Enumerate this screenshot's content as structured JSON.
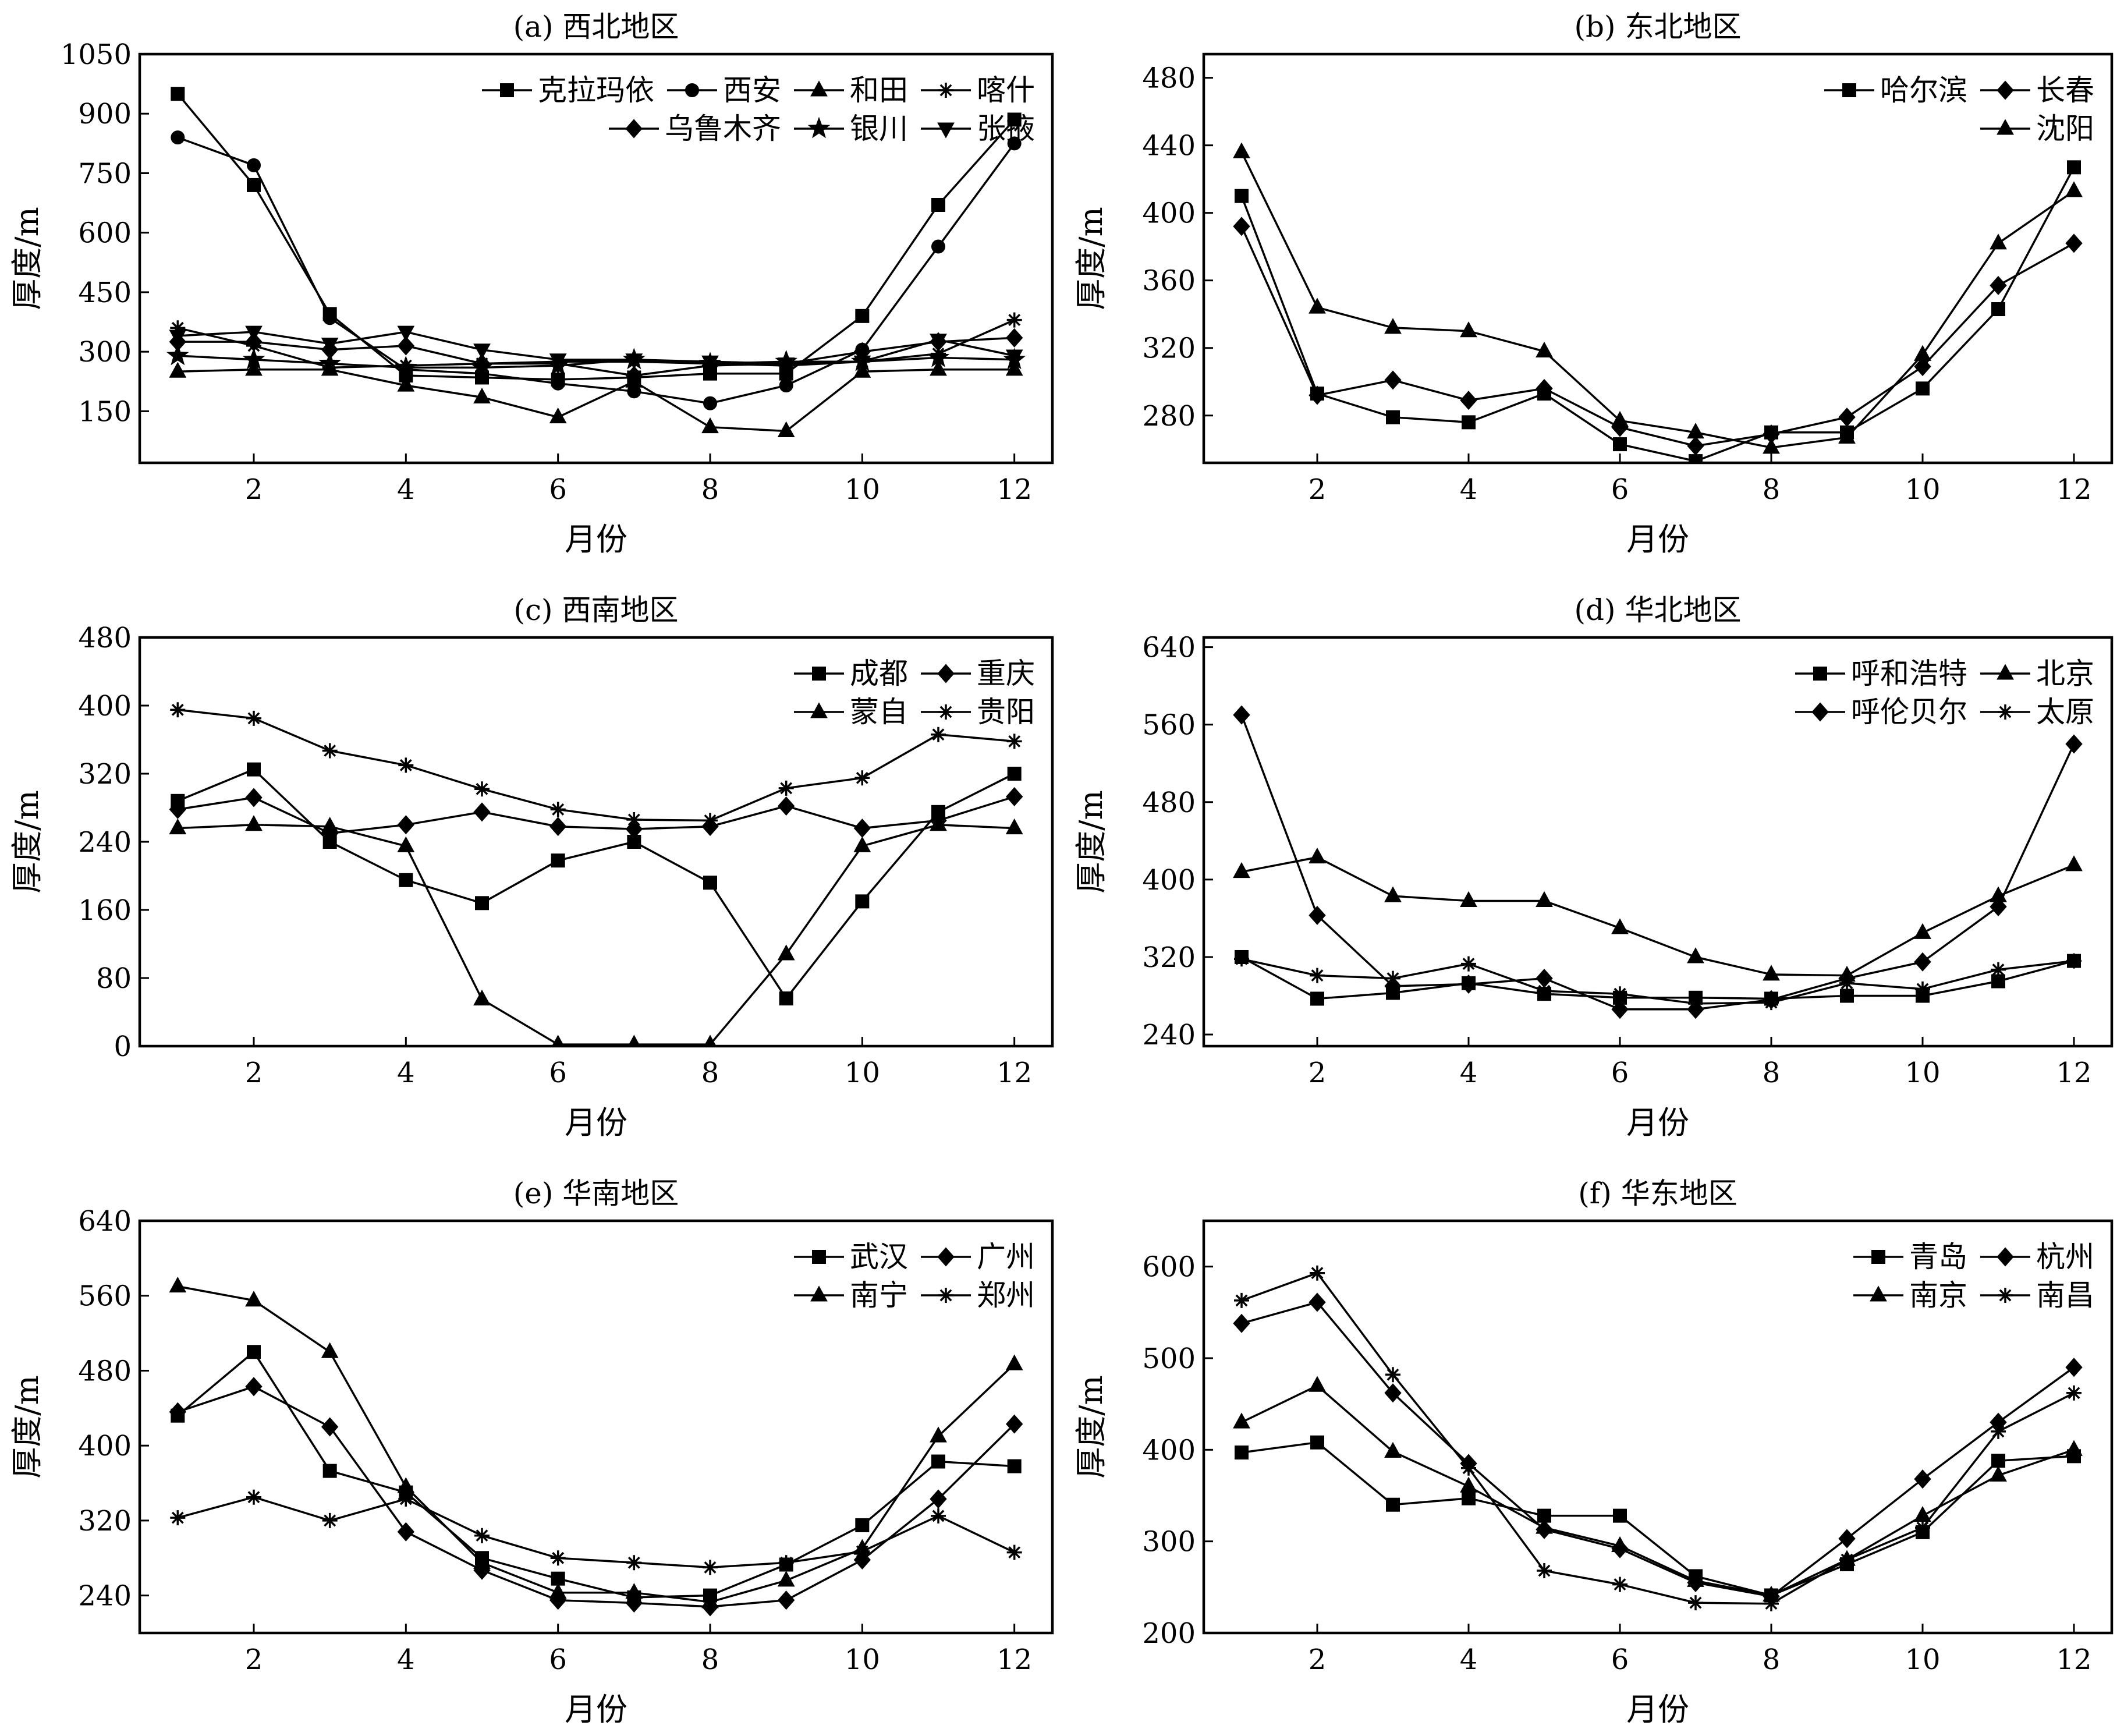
{
  "chart_data": [
    {
      "type": "line",
      "title": "(a) 西北地区",
      "xlabel": "月份",
      "ylabel": "厚度/m",
      "x": [
        1,
        2,
        3,
        4,
        5,
        6,
        7,
        8,
        9,
        10,
        11,
        12
      ],
      "xticks": [
        2,
        4,
        6,
        8,
        10,
        12
      ],
      "xlim": [
        0.5,
        12.5
      ],
      "ylim": [
        20,
        1050
      ],
      "yticks": [
        150,
        300,
        450,
        600,
        750,
        900,
        1050
      ],
      "legend_position": "top-right",
      "legend_rows": [
        [
          0,
          1,
          2,
          3
        ],
        [
          4,
          5,
          6
        ]
      ],
      "series": [
        {
          "name": "克拉玛依",
          "marker": "square",
          "values": [
            950,
            720,
            395,
            240,
            235,
            230,
            235,
            245,
            245,
            390,
            670,
            885
          ]
        },
        {
          "name": "西安",
          "marker": "circle",
          "values": [
            840,
            770,
            385,
            255,
            245,
            220,
            200,
            170,
            215,
            305,
            565,
            825
          ]
        },
        {
          "name": "和田",
          "marker": "triangle",
          "values": [
            250,
            255,
            255,
            215,
            185,
            135,
            225,
            110,
            100,
            250,
            255,
            255
          ]
        },
        {
          "name": "喀什",
          "marker": "asterisk",
          "values": [
            360,
            315,
            260,
            265,
            270,
            275,
            275,
            270,
            265,
            275,
            295,
            380
          ]
        },
        {
          "name": "乌鲁木齐",
          "marker": "diamond",
          "values": [
            325,
            325,
            305,
            315,
            270,
            270,
            240,
            265,
            270,
            300,
            325,
            335
          ]
        },
        {
          "name": "银川",
          "marker": "star",
          "values": [
            290,
            280,
            270,
            260,
            260,
            265,
            280,
            270,
            275,
            275,
            285,
            280
          ]
        },
        {
          "name": "张掖",
          "marker": "triangle-down",
          "values": [
            340,
            350,
            320,
            350,
            305,
            280,
            280,
            275,
            270,
            275,
            330,
            290
          ]
        }
      ]
    },
    {
      "type": "line",
      "title": "(b) 东北地区",
      "xlabel": "月份",
      "ylabel": "厚度/m",
      "x": [
        1,
        2,
        3,
        4,
        5,
        6,
        7,
        8,
        9,
        10,
        11,
        12
      ],
      "xticks": [
        2,
        4,
        6,
        8,
        10,
        12
      ],
      "xlim": [
        0.5,
        12.5
      ],
      "ylim": [
        252,
        494
      ],
      "yticks": [
        280,
        320,
        360,
        400,
        440,
        480
      ],
      "legend_position": "top-right",
      "legend_rows": [
        [
          0,
          1
        ],
        [
          2
        ]
      ],
      "series": [
        {
          "name": "哈尔滨",
          "marker": "square",
          "values": [
            410,
            293,
            279,
            276,
            293,
            263,
            253,
            270,
            270,
            296,
            343,
            427
          ]
        },
        {
          "name": "长春",
          "marker": "diamond",
          "values": [
            392,
            292,
            301,
            289,
            296,
            273,
            262,
            269,
            279,
            309,
            357,
            382
          ]
        },
        {
          "name": "沈阳",
          "marker": "triangle",
          "values": [
            436,
            344,
            332,
            330,
            318,
            277,
            270,
            261,
            267,
            316,
            382,
            413
          ]
        }
      ]
    },
    {
      "type": "line",
      "title": "(c) 西南地区",
      "xlabel": "月份",
      "ylabel": "厚度/m",
      "x": [
        1,
        2,
        3,
        4,
        5,
        6,
        7,
        8,
        9,
        10,
        11,
        12
      ],
      "xticks": [
        2,
        4,
        6,
        8,
        10,
        12
      ],
      "xlim": [
        0.5,
        12.5
      ],
      "ylim": [
        0,
        480
      ],
      "yticks": [
        0,
        80,
        160,
        240,
        320,
        400,
        480
      ],
      "legend_position": "top-right",
      "legend_rows": [
        [
          0,
          1
        ],
        [
          2,
          3
        ]
      ],
      "series": [
        {
          "name": "成都",
          "marker": "square",
          "values": [
            288,
            325,
            240,
            195,
            168,
            218,
            240,
            192,
            56,
            170,
            275,
            320
          ]
        },
        {
          "name": "重庆",
          "marker": "diamond",
          "values": [
            278,
            292,
            250,
            260,
            275,
            258,
            255,
            258,
            282,
            256,
            265,
            293
          ]
        },
        {
          "name": "蒙自",
          "marker": "triangle",
          "values": [
            256,
            260,
            258,
            235,
            55,
            2,
            2,
            2,
            108,
            235,
            260,
            256
          ]
        },
        {
          "name": "贵阳",
          "marker": "asterisk",
          "values": [
            395,
            385,
            347,
            330,
            302,
            278,
            266,
            265,
            303,
            315,
            366,
            358
          ]
        }
      ]
    },
    {
      "type": "line",
      "title": "(d) 华北地区",
      "xlabel": "月份",
      "ylabel": "厚度/m",
      "x": [
        1,
        2,
        3,
        4,
        5,
        6,
        7,
        8,
        9,
        10,
        11,
        12
      ],
      "xticks": [
        2,
        4,
        6,
        8,
        10,
        12
      ],
      "xlim": [
        0.5,
        12.5
      ],
      "ylim": [
        228,
        650
      ],
      "yticks": [
        240,
        320,
        400,
        480,
        560,
        640
      ],
      "legend_position": "top-right",
      "legend_rows": [
        [
          0,
          1
        ],
        [
          2,
          3
        ]
      ],
      "series": [
        {
          "name": "呼和浩特",
          "marker": "square",
          "values": [
            320,
            277,
            283,
            293,
            282,
            278,
            278,
            277,
            280,
            280,
            295,
            316
          ]
        },
        {
          "name": "北京",
          "marker": "triangle",
          "values": [
            408,
            423,
            383,
            378,
            378,
            350,
            320,
            302,
            301,
            345,
            383,
            415
          ]
        },
        {
          "name": "呼伦贝尔",
          "marker": "diamond",
          "values": [
            570,
            363,
            290,
            292,
            298,
            266,
            266,
            276,
            298,
            315,
            372,
            540
          ]
        },
        {
          "name": "太原",
          "marker": "asterisk",
          "values": [
            318,
            301,
            298,
            313,
            285,
            282,
            272,
            273,
            293,
            287,
            307,
            316
          ]
        }
      ]
    },
    {
      "type": "line",
      "title": "(e) 华南地区",
      "xlabel": "月份",
      "ylabel": "厚度/m",
      "x": [
        1,
        2,
        3,
        4,
        5,
        6,
        7,
        8,
        9,
        10,
        11,
        12
      ],
      "xticks": [
        2,
        4,
        6,
        8,
        10,
        12
      ],
      "xlim": [
        0.5,
        12.5
      ],
      "ylim": [
        200,
        640
      ],
      "yticks": [
        240,
        320,
        400,
        480,
        560,
        640
      ],
      "legend_position": "top-right",
      "legend_rows": [
        [
          0,
          1
        ],
        [
          2,
          3
        ]
      ],
      "series": [
        {
          "name": "武汉",
          "marker": "square",
          "values": [
            432,
            500,
            373,
            350,
            280,
            258,
            238,
            240,
            273,
            315,
            383,
            378
          ]
        },
        {
          "name": "广州",
          "marker": "diamond",
          "values": [
            436,
            463,
            420,
            308,
            267,
            235,
            232,
            228,
            235,
            278,
            343,
            423
          ]
        },
        {
          "name": "南宁",
          "marker": "triangle",
          "values": [
            570,
            555,
            500,
            356,
            275,
            243,
            243,
            233,
            256,
            290,
            410,
            487
          ]
        },
        {
          "name": "郑州",
          "marker": "asterisk",
          "values": [
            323,
            345,
            320,
            343,
            304,
            280,
            275,
            270,
            275,
            287,
            325,
            286
          ]
        }
      ]
    },
    {
      "type": "line",
      "title": "(f) 华东地区",
      "xlabel": "月份",
      "ylabel": "厚度/m",
      "x": [
        1,
        2,
        3,
        4,
        5,
        6,
        7,
        8,
        9,
        10,
        11,
        12
      ],
      "xticks": [
        2,
        4,
        6,
        8,
        10,
        12
      ],
      "xlim": [
        0.5,
        12.5
      ],
      "ylim": [
        200,
        650
      ],
      "yticks": [
        200,
        300,
        400,
        500,
        600
      ],
      "legend_position": "top-right",
      "legend_rows": [
        [
          0,
          1
        ],
        [
          2,
          3
        ]
      ],
      "series": [
        {
          "name": "青岛",
          "marker": "square",
          "values": [
            397,
            408,
            340,
            347,
            328,
            328,
            262,
            241,
            275,
            310,
            388,
            393
          ]
        },
        {
          "name": "杭州",
          "marker": "diamond",
          "values": [
            538,
            561,
            462,
            385,
            313,
            292,
            255,
            240,
            303,
            368,
            430,
            490
          ]
        },
        {
          "name": "南京",
          "marker": "triangle",
          "values": [
            430,
            470,
            398,
            360,
            315,
            295,
            257,
            241,
            280,
            328,
            372,
            400
          ]
        },
        {
          "name": "南昌",
          "marker": "asterisk",
          "values": [
            563,
            593,
            482,
            380,
            268,
            253,
            233,
            232,
            280,
            315,
            420,
            462
          ]
        }
      ]
    }
  ]
}
